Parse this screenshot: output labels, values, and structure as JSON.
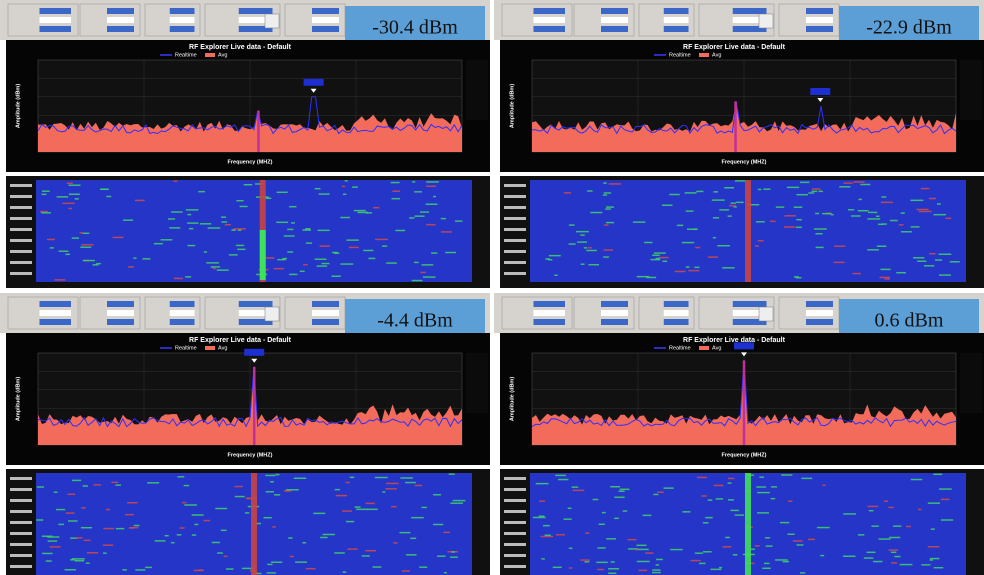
{
  "panels": [
    {
      "power_label": "-30.4 dBm",
      "chart_title": "RF Explorer Live data - Default",
      "legend": [
        "Realtime",
        "Avg"
      ],
      "x_axis_label": "Frequency (MHZ)",
      "y_axis_label": "Amplitude (dBm)"
    },
    {
      "power_label": "-22.9 dBm",
      "chart_title": "RF Explorer Live data - Default",
      "legend": [
        "Realtime",
        "Avg"
      ],
      "x_axis_label": "Frequency (MHZ)",
      "y_axis_label": "Amplitude (dBm)"
    },
    {
      "power_label": "-4.4 dBm",
      "chart_title": "RF Explorer Live data - Default",
      "legend": [
        "Realtime",
        "Avg"
      ],
      "x_axis_label": "Frequency (MHZ)",
      "y_axis_label": "Amplitude (dBm)"
    },
    {
      "power_label": "0.6 dBm",
      "chart_title": "RF Explorer Live data - Default",
      "legend": [
        "Realtime",
        "Avg"
      ],
      "x_axis_label": "Frequency (MHZ)",
      "y_axis_label": "Amplitude (dBm)"
    }
  ]
}
